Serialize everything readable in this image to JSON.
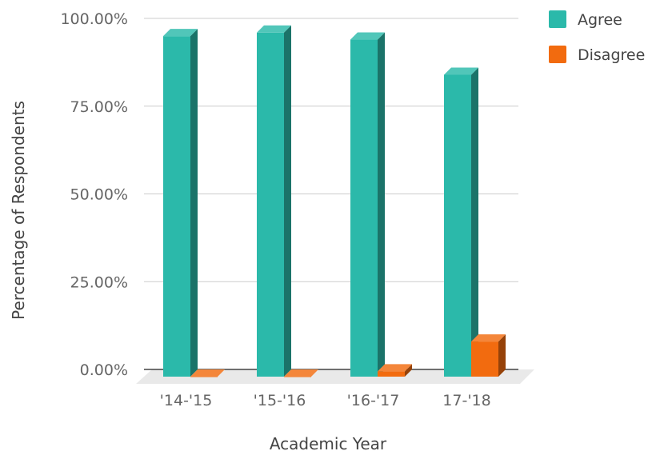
{
  "chart_data": {
    "type": "bar",
    "categories": [
      "'14-'15",
      "'15-'16",
      "'16-'17",
      "17-'18"
    ],
    "series": [
      {
        "name": "Agree",
        "values": [
          97.0,
          98.0,
          96.0,
          86.0
        ],
        "color": "#2bb9aa"
      },
      {
        "name": "Disagree",
        "values": [
          0.0,
          0.0,
          1.5,
          10.0
        ],
        "color": "#f26b0f"
      }
    ],
    "xlabel": "Academic Year",
    "ylabel": "Percentage of Respondents",
    "ylim": [
      0,
      100
    ],
    "yticks": [
      "0.00%",
      "25.00%",
      "50.00%",
      "75.00%",
      "100.00%"
    ],
    "grid": true,
    "legend_position": "top-right",
    "style": "3d"
  }
}
